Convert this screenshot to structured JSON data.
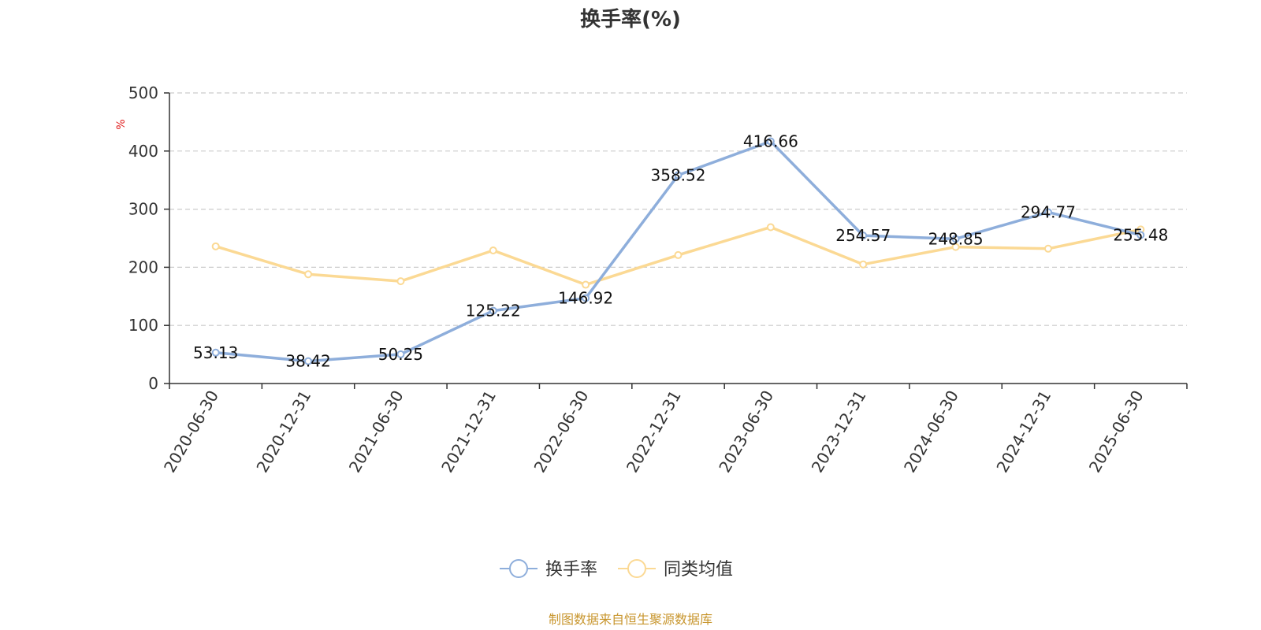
{
  "chart_data": {
    "type": "line",
    "title": "换手率(%)",
    "ylabel": "%",
    "xlabel": "",
    "ylim": [
      0,
      500
    ],
    "yticks": [
      0,
      100,
      200,
      300,
      400,
      500
    ],
    "grid": true,
    "legend_position": "bottom",
    "categories": [
      "2020-06-30",
      "2020-12-31",
      "2021-06-30",
      "2021-12-31",
      "2022-06-30",
      "2022-12-31",
      "2023-06-30",
      "2023-12-31",
      "2024-06-30",
      "2024-12-31",
      "2025-06-30"
    ],
    "series": [
      {
        "name": "换手率",
        "color": "#8eaedb",
        "values": [
          53.13,
          38.42,
          50.25,
          125.22,
          146.92,
          358.52,
          416.66,
          254.57,
          248.85,
          294.77,
          255.48
        ],
        "labels": [
          "53.13",
          "38.42",
          "50.25",
          "125.22",
          "146.92",
          "358.52",
          "416.66",
          "254.57",
          "248.85",
          "294.77",
          "255.48"
        ]
      },
      {
        "name": "同类均值",
        "color": "#fbd994",
        "values": [
          236,
          188,
          176,
          229,
          170,
          221,
          269,
          205,
          235,
          232,
          265
        ]
      }
    ],
    "source": "制图数据来自恒生聚源数据库",
    "source_color": "#c8962e",
    "unit_color": "#e02020"
  }
}
